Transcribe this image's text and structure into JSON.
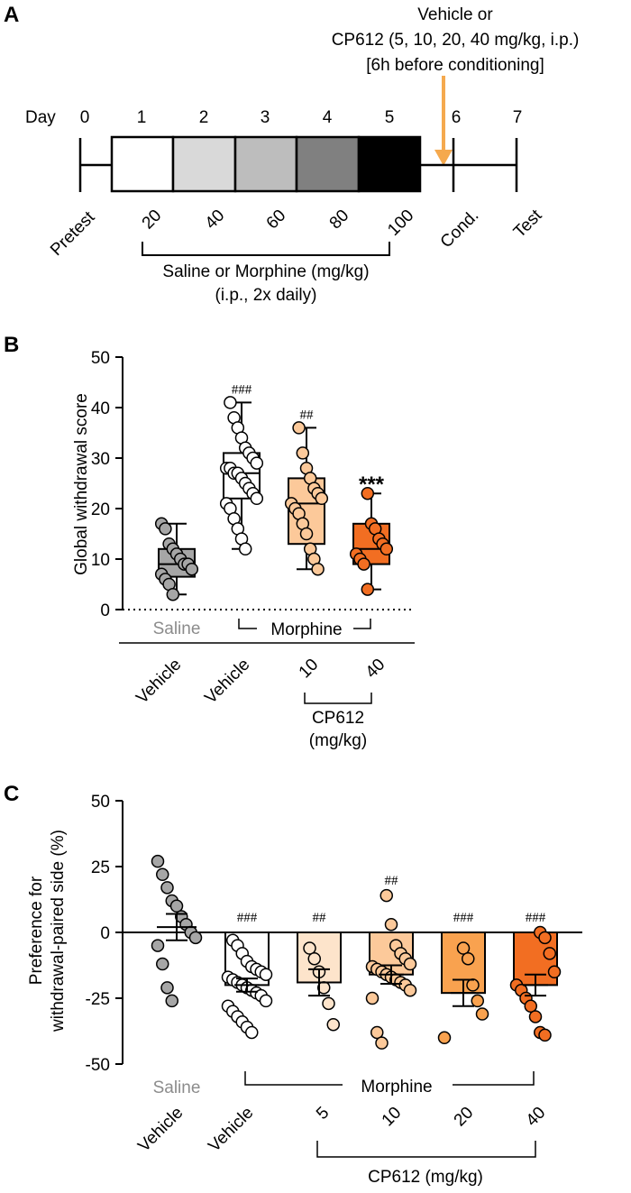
{
  "panel_a": {
    "letter": "A",
    "day_label": "Day",
    "days": [
      "0",
      "1",
      "2",
      "3",
      "4",
      "5",
      "6",
      "7"
    ],
    "dose_labels": [
      "20",
      "40",
      "60",
      "80",
      "100"
    ],
    "pretest_label": "Pretest",
    "cond_label": "Cond.",
    "test_label": "Test",
    "treatment_line1": "Vehicle or",
    "treatment_line2": "CP612 (5, 10, 20, 40 mg/kg, i.p.)",
    "treatment_line3": "[6h before conditioning]",
    "bracket_line1": "Saline or Morphine (mg/kg)",
    "bracket_line2": "(i.p., 2x daily)",
    "box_colors": [
      "#ffffff",
      "#d9d9d9",
      "#bdbdbd",
      "#808080",
      "#000000"
    ],
    "arrow_color": "#f5a94e"
  },
  "panel_b": {
    "letter": "B",
    "saline_label": "Saline",
    "morphine_label": "Morphine",
    "cp_label": "CP612",
    "cp_unit": "(mg/kg)"
  },
  "panel_c": {
    "letter": "C",
    "saline_label": "Saline",
    "morphine_label": "Morphine",
    "cp_label": "CP612 (mg/kg)"
  },
  "chart_data": [
    {
      "type": "box",
      "ylabel": "Global withdrawal score",
      "ylim": [
        0,
        50
      ],
      "yticks": [
        0,
        10,
        20,
        30,
        40,
        50
      ],
      "reference_line": 0,
      "categories": [
        "Vehicle",
        "Vehicle",
        "10",
        "40"
      ],
      "groups": [
        {
          "treatment": "Saline",
          "color": "#a6a6a6",
          "median": 9,
          "q1": 6.5,
          "q3": 12,
          "whisker_low": 3,
          "whisker_high": 17,
          "points": [
            17,
            16,
            13,
            12,
            11,
            10,
            9,
            9,
            8,
            7,
            6,
            5,
            3
          ],
          "annotation": ""
        },
        {
          "treatment": "Morphine",
          "color": "#ffffff",
          "median": 27,
          "q1": 22,
          "q3": 31,
          "whisker_low": 12,
          "whisker_high": 41,
          "points": [
            41,
            38,
            36,
            34,
            32,
            31,
            30,
            29,
            28,
            28,
            27,
            27,
            26,
            25,
            24,
            23,
            22,
            21,
            20,
            18,
            16,
            14,
            12
          ],
          "annotation": "###"
        },
        {
          "treatment": "Morphine",
          "color": "#fcc99a",
          "median": 21,
          "q1": 13,
          "q3": 26,
          "whisker_low": 8,
          "whisker_high": 36,
          "points": [
            36,
            31,
            28,
            26,
            24,
            23,
            22,
            21,
            20,
            19,
            17,
            15,
            12,
            10,
            8
          ],
          "annotation": "##"
        },
        {
          "treatment": "Morphine",
          "color": "#f26e22",
          "median": 12,
          "q1": 9,
          "q3": 17,
          "whisker_low": 4,
          "whisker_high": 23,
          "points": [
            23,
            17,
            16,
            14,
            13,
            12,
            11,
            10,
            9,
            4
          ],
          "annotation": "***"
        }
      ]
    },
    {
      "type": "bar",
      "ylabel": "Preference for withdrawal-paired side (%)",
      "ylim": [
        -50,
        50
      ],
      "yticks": [
        -50,
        -25,
        0,
        25,
        50
      ],
      "categories": [
        "Vehicle",
        "Vehicle",
        "5",
        "10",
        "20",
        "40"
      ],
      "groups": [
        {
          "treatment": "Saline",
          "color": "#a6a6a6",
          "mean": 2,
          "sem": 5,
          "points": [
            27,
            22,
            17,
            12,
            10,
            6,
            3,
            0,
            -2,
            -5,
            -12,
            -21,
            -26
          ],
          "annotation": ""
        },
        {
          "treatment": "Morphine",
          "color": "#ffffff",
          "mean": -20,
          "sem": 2.5,
          "points": [
            -3,
            -5,
            -8,
            -11,
            -13,
            -14,
            -15,
            -16,
            -17,
            -18,
            -19,
            -20,
            -21,
            -22,
            -23,
            -24,
            -26,
            -28,
            -30,
            -32,
            -34,
            -36,
            -38
          ],
          "annotation": "###"
        },
        {
          "treatment": "Morphine",
          "color": "#fde4cb",
          "mean": -19,
          "sem": 5,
          "points": [
            -6,
            -10,
            -15,
            -21,
            -27,
            -35
          ],
          "annotation": "##"
        },
        {
          "treatment": "Morphine",
          "color": "#fcc99a",
          "mean": -16,
          "sem": 3.5,
          "points": [
            14,
            3,
            -5,
            -8,
            -10,
            -12,
            -13,
            -14,
            -15,
            -16,
            -17,
            -18,
            -19,
            -20,
            -22,
            -25,
            -38,
            -42
          ],
          "annotation": "##"
        },
        {
          "treatment": "Morphine",
          "color": "#f9a24f",
          "mean": -23,
          "sem": 5,
          "points": [
            -6,
            -10,
            -20,
            -26,
            -31,
            -40
          ],
          "annotation": "###"
        },
        {
          "treatment": "Morphine",
          "color": "#f26e22",
          "mean": -20,
          "sem": 4,
          "points": [
            0,
            -2,
            -8,
            -15,
            -20,
            -22,
            -25,
            -28,
            -32,
            -38,
            -39
          ],
          "annotation": "###"
        }
      ]
    }
  ]
}
